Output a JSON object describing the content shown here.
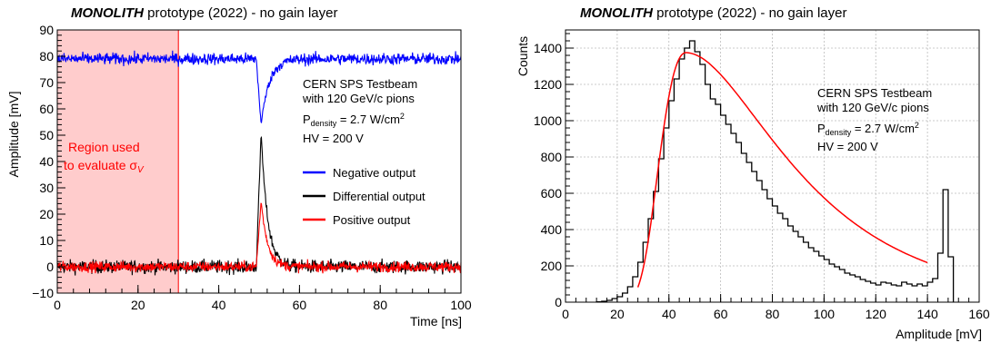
{
  "chart_data": [
    {
      "type": "line",
      "title_bold": "MONOLITH",
      "title_rest": " prototype (2022) - no gain layer",
      "xlabel": "Time [ns]",
      "ylabel": "Amplitude [mV]",
      "xlim": [
        0,
        100
      ],
      "ylim": [
        -10,
        90
      ],
      "x_ticks": [
        0,
        20,
        40,
        60,
        80,
        100
      ],
      "y_ticks": [
        -10,
        0,
        10,
        20,
        30,
        40,
        50,
        60,
        70,
        80,
        90
      ],
      "grid": false,
      "shaded_region": {
        "x_start": 0,
        "x_end": 30,
        "label_line1": "Region used",
        "label_line2": "to evaluate σ",
        "label_sub": "V",
        "color": "#ff0000"
      },
      "annotation_lines": [
        "CERN SPS Testbeam",
        "with 120 GeV/c pions"
      ],
      "pdensity": {
        "prefix": "P",
        "sub": "density",
        "value": " = 2.7 W/cm",
        "sup": "2"
      },
      "hv": "HV = 200 V",
      "legend_position": "middle-right",
      "series": [
        {
          "name": "Negative output",
          "color": "#0000ff",
          "baseline": 79,
          "peak_x": 50.5,
          "peak_y": 54,
          "noise": 1.6
        },
        {
          "name": "Differential output",
          "color": "#000000",
          "baseline": 0,
          "peak_x": 50.5,
          "peak_y": 51,
          "noise": 1.8
        },
        {
          "name": "Positive output",
          "color": "#ff0000",
          "baseline": 0,
          "peak_x": 50.5,
          "peak_y": 25,
          "noise": 1.4
        }
      ]
    },
    {
      "type": "histogram",
      "title_bold": "MONOLITH",
      "title_rest": " prototype (2022) - no gain layer",
      "xlabel": "Amplitude [mV]",
      "ylabel": "Counts",
      "xlim": [
        0,
        160
      ],
      "ylim": [
        0,
        1500
      ],
      "x_ticks": [
        0,
        20,
        40,
        60,
        80,
        100,
        120,
        140,
        160
      ],
      "y_ticks": [
        0,
        200,
        400,
        600,
        800,
        1000,
        1200,
        1400
      ],
      "grid": true,
      "annotation_lines": [
        "CERN SPS Testbeam",
        "with 120 GeV/c pions"
      ],
      "pdensity": {
        "prefix": "P",
        "sub": "density",
        "value": " = 2.7 W/cm",
        "sup": "2"
      },
      "hv": "HV = 200 V",
      "bin_width": 2,
      "bins_x_start": [
        12,
        14,
        16,
        18,
        20,
        22,
        24,
        26,
        28,
        30,
        32,
        34,
        36,
        38,
        40,
        42,
        44,
        46,
        48,
        50,
        52,
        54,
        56,
        58,
        60,
        62,
        64,
        66,
        68,
        70,
        72,
        74,
        76,
        78,
        80,
        82,
        84,
        86,
        88,
        90,
        92,
        94,
        96,
        98,
        100,
        102,
        104,
        106,
        108,
        110,
        112,
        114,
        116,
        118,
        120,
        122,
        124,
        126,
        128,
        130,
        132,
        134,
        136,
        138,
        140,
        142,
        144,
        146,
        148
      ],
      "counts": [
        2,
        5,
        10,
        20,
        30,
        50,
        85,
        140,
        220,
        330,
        460,
        610,
        790,
        960,
        1110,
        1230,
        1340,
        1400,
        1440,
        1380,
        1310,
        1200,
        1120,
        1090,
        1030,
        980,
        930,
        880,
        820,
        770,
        720,
        670,
        620,
        570,
        530,
        490,
        460,
        420,
        390,
        360,
        330,
        300,
        280,
        255,
        235,
        210,
        195,
        180,
        160,
        150,
        140,
        125,
        115,
        105,
        95,
        110,
        105,
        95,
        90,
        110,
        100,
        90,
        100,
        90,
        110,
        130,
        270,
        620,
        250
      ],
      "fit": {
        "type": "landau",
        "color": "#ff0000",
        "x_range": [
          28,
          140
        ],
        "mpv": 46.5,
        "peak_counts": 1375,
        "sigma_left": 8.5,
        "sigma_right": 20
      }
    }
  ]
}
